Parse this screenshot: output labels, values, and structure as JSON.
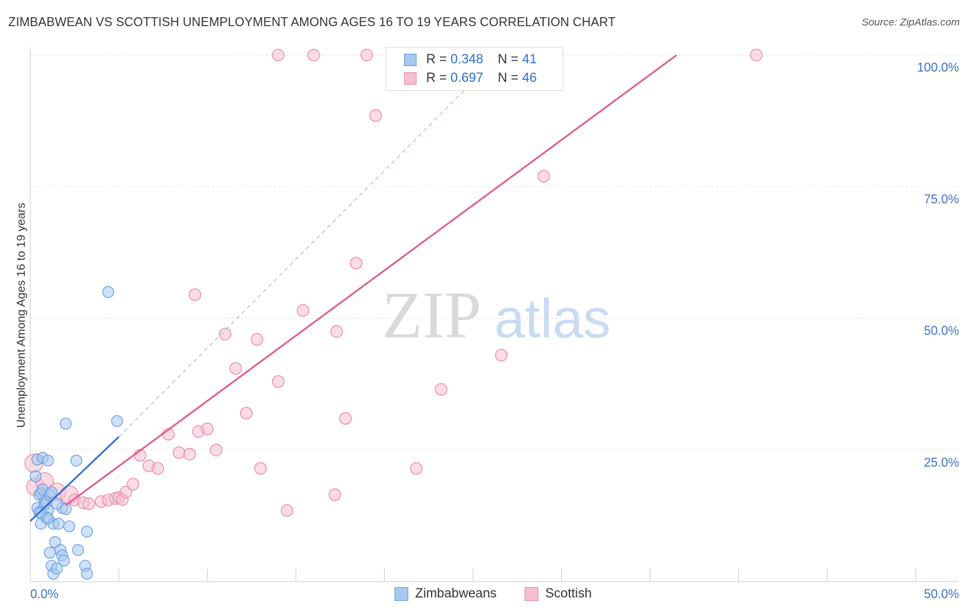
{
  "title": "ZIMBABWEAN VS SCOTTISH UNEMPLOYMENT AMONG AGES 16 TO 19 YEARS CORRELATION CHART",
  "source": "Source: ZipAtlas.com",
  "watermark": {
    "zip": "ZIP",
    "atlas": "atlas"
  },
  "colors": {
    "zim_fill": "#a8c8f0",
    "zim_stroke": "#6a9fe0",
    "zim_line": "#2e6fd1",
    "sco_fill": "#f6bfd0",
    "sco_stroke": "#e98aa8",
    "sco_line": "#e05c8a",
    "axis_label": "#3a72c9",
    "grid": "#e2e2e2"
  },
  "legend": {
    "r_label": "R = ",
    "n_label": "N = ",
    "zimbabweans": {
      "r": "0.348",
      "n": "41"
    },
    "scottish": {
      "r": "0.697",
      "n": "46"
    }
  },
  "chart_data": {
    "type": "scatter",
    "title": "ZIMBABWEAN VS SCOTTISH UNEMPLOYMENT AMONG AGES 16 TO 19 YEARS CORRELATION CHART",
    "xlabel": "",
    "ylabel": "Unemployment Among Ages 16 to 19 years",
    "xlim": [
      0,
      50
    ],
    "ylim": [
      0,
      100
    ],
    "x_tick_labels": [
      {
        "value": 0,
        "label": "0.0%"
      },
      {
        "value": 50,
        "label": "50.0%"
      }
    ],
    "y_tick_labels": [
      {
        "value": 25,
        "label": "25.0%"
      },
      {
        "value": 50,
        "label": "50.0%"
      },
      {
        "value": 75,
        "label": "75.0%"
      },
      {
        "value": 100,
        "label": "100.0%"
      }
    ],
    "legend_position": "top-center",
    "series": [
      {
        "name": "Zimbabweans",
        "r": 0.348,
        "n": 41,
        "trend_solid": [
          [
            0.0,
            11.5
          ],
          [
            5.0,
            27.5
          ]
        ],
        "trend_dashed": [
          [
            5.0,
            27.5
          ],
          [
            26.5,
            100.0
          ]
        ],
        "points": [
          [
            0.3,
            20.0
          ],
          [
            0.4,
            23.2
          ],
          [
            0.5,
            16.5
          ],
          [
            0.6,
            16.8
          ],
          [
            0.7,
            17.5
          ],
          [
            0.8,
            15.2
          ],
          [
            0.4,
            14.0
          ],
          [
            0.5,
            13.2
          ],
          [
            0.6,
            11.0
          ],
          [
            0.8,
            14.5
          ],
          [
            0.9,
            15.0
          ],
          [
            1.0,
            13.5
          ],
          [
            1.1,
            16.5
          ],
          [
            1.2,
            17.0
          ],
          [
            0.9,
            12.2
          ],
          [
            0.7,
            23.5
          ],
          [
            1.0,
            23.0
          ],
          [
            1.3,
            11.0
          ],
          [
            1.4,
            7.5
          ],
          [
            1.6,
            11.0
          ],
          [
            1.7,
            6.0
          ],
          [
            1.8,
            5.0
          ],
          [
            1.9,
            4.0
          ],
          [
            1.2,
            3.0
          ],
          [
            1.3,
            1.5
          ],
          [
            1.5,
            2.5
          ],
          [
            1.8,
            14.0
          ],
          [
            1.1,
            5.5
          ],
          [
            2.0,
            13.8
          ],
          [
            2.0,
            30.0
          ],
          [
            2.2,
            10.5
          ],
          [
            2.6,
            23.0
          ],
          [
            2.7,
            6.0
          ],
          [
            3.1,
            3.0
          ],
          [
            3.2,
            1.5
          ],
          [
            3.2,
            9.5
          ],
          [
            4.4,
            55.0
          ],
          [
            4.9,
            30.5
          ],
          [
            0.6,
            13.0
          ],
          [
            1.0,
            12.0
          ],
          [
            1.5,
            14.8
          ]
        ]
      },
      {
        "name": "Scottish",
        "r": 0.697,
        "n": 46,
        "trend_solid": [
          [
            2.0,
            14.5
          ],
          [
            36.5,
            100.0
          ]
        ],
        "points": [
          [
            0.2,
            22.5
          ],
          [
            0.3,
            18.0
          ],
          [
            0.8,
            19.0
          ],
          [
            1.5,
            17.0
          ],
          [
            2.2,
            16.5
          ],
          [
            2.5,
            15.5
          ],
          [
            3.0,
            15.0
          ],
          [
            3.3,
            14.8
          ],
          [
            4.0,
            15.2
          ],
          [
            4.4,
            15.5
          ],
          [
            4.8,
            15.8
          ],
          [
            5.0,
            16.0
          ],
          [
            5.2,
            15.6
          ],
          [
            5.4,
            17.0
          ],
          [
            5.8,
            18.5
          ],
          [
            6.2,
            24.0
          ],
          [
            6.7,
            22.0
          ],
          [
            7.2,
            21.5
          ],
          [
            7.8,
            28.0
          ],
          [
            8.4,
            24.5
          ],
          [
            9.0,
            24.2
          ],
          [
            9.5,
            28.5
          ],
          [
            10.0,
            29.0
          ],
          [
            10.5,
            25.0
          ],
          [
            9.3,
            54.5
          ],
          [
            11.0,
            47.0
          ],
          [
            11.6,
            40.5
          ],
          [
            12.2,
            32.0
          ],
          [
            12.8,
            46.0
          ],
          [
            13.0,
            21.5
          ],
          [
            14.0,
            38.0
          ],
          [
            14.5,
            13.5
          ],
          [
            15.4,
            51.5
          ],
          [
            17.2,
            16.5
          ],
          [
            17.3,
            47.5
          ],
          [
            17.8,
            31.0
          ],
          [
            18.4,
            60.5
          ],
          [
            19.5,
            88.5
          ],
          [
            21.8,
            21.5
          ],
          [
            23.2,
            36.5
          ],
          [
            26.6,
            43.0
          ],
          [
            29.0,
            77.0
          ],
          [
            14.0,
            100.0
          ],
          [
            16.0,
            100.0
          ],
          [
            19.0,
            100.0
          ],
          [
            41.0,
            100.0
          ]
        ]
      }
    ]
  }
}
